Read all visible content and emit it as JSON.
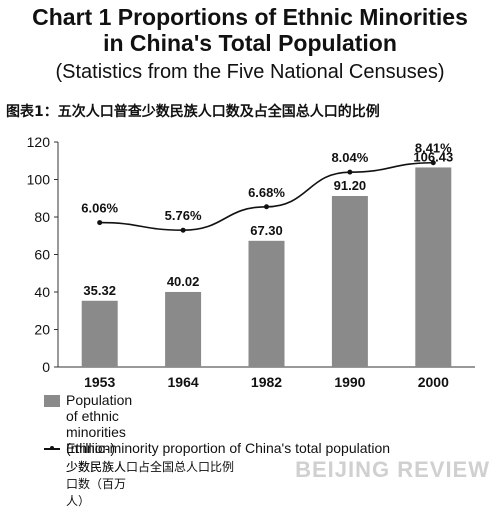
{
  "title_line1": "Chart 1  Proportions of Ethnic Minorities",
  "title_line2": "in China's Total Population",
  "subtitle": "(Statistics from the Five National Censuses)",
  "cn_title": "图表1：五次人口普查少数民族人口数及占全国总人口的比例",
  "legend": {
    "bar_en": "Population of ethnic minorities (million)",
    "bar_cn": "少数民族人口数（百万人）",
    "line_en": "Ethnic-minority proportion of China's total population",
    "line_cn": "少数民族人口占全国总人口比例"
  },
  "watermark": "BEIJING REVIEW",
  "colors": {
    "bar": "#8a8a8a",
    "line": "#111111",
    "axis": "#333333"
  },
  "chart_data": {
    "type": "bar",
    "categories": [
      "1953",
      "1964",
      "1982",
      "1990",
      "2000"
    ],
    "series": [
      {
        "name": "Population of ethnic minorities (million)",
        "type": "bar",
        "values": [
          35.32,
          40.02,
          67.3,
          91.2,
          106.43
        ],
        "labels": [
          "35.32",
          "40.02",
          "67.30",
          "91.20",
          "106.43"
        ]
      },
      {
        "name": "Ethnic-minority proportion of China's total population",
        "type": "line",
        "values": [
          6.06,
          5.76,
          6.68,
          8.04,
          8.41
        ],
        "labels": [
          "6.06%",
          "5.76%",
          "6.68%",
          "8.04%",
          "8.41%"
        ]
      }
    ],
    "yticks": [
      "0",
      "20",
      "40",
      "60",
      "80",
      "100",
      "120"
    ],
    "ylim": [
      0,
      120
    ]
  }
}
